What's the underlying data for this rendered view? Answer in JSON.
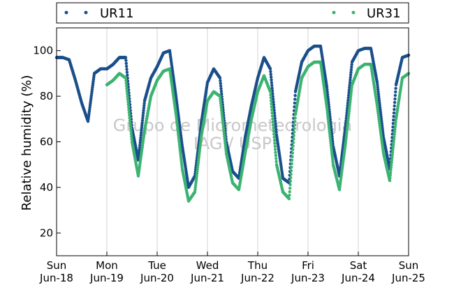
{
  "chart_data": {
    "type": "scatter",
    "ylabel": "Relative humidity (%)",
    "xlabel": "",
    "ylim": [
      10,
      110
    ],
    "xlim": [
      "2017-06-18",
      "2017-06-25"
    ],
    "yticks": [
      20,
      40,
      60,
      80,
      100
    ],
    "xticks": [
      {
        "day": "Sun",
        "date": "Jun-18"
      },
      {
        "day": "Mon",
        "date": "Jun-19"
      },
      {
        "day": "Tue",
        "date": "Jun-20"
      },
      {
        "day": "Wed",
        "date": "Jun-21"
      },
      {
        "day": "Thu",
        "date": "Jun-22"
      },
      {
        "day": "Fri",
        "date": "Jun-23"
      },
      {
        "day": "Sat",
        "date": "Jun-24"
      },
      {
        "day": "Sun",
        "date": "Jun-25"
      }
    ],
    "grid": "vertical",
    "legend_position": "top",
    "watermark": [
      "Grupo de Micrometeorologia",
      "IAG / USP"
    ],
    "series": [
      {
        "name": "UR11",
        "color": "#1a4f8b",
        "x": [
          "2017-06-18 00:00",
          "2017-06-18 03:00",
          "2017-06-18 06:00",
          "2017-06-18 09:00",
          "2017-06-18 12:00",
          "2017-06-18 15:00",
          "2017-06-18 18:00",
          "2017-06-18 21:00",
          "2017-06-19 00:00",
          "2017-06-19 03:00",
          "2017-06-19 06:00",
          "2017-06-19 09:00",
          "2017-06-19 12:00",
          "2017-06-19 15:00",
          "2017-06-19 18:00",
          "2017-06-19 21:00",
          "2017-06-20 00:00",
          "2017-06-20 03:00",
          "2017-06-20 06:00",
          "2017-06-20 09:00",
          "2017-06-20 12:00",
          "2017-06-20 15:00",
          "2017-06-20 18:00",
          "2017-06-20 21:00",
          "2017-06-21 00:00",
          "2017-06-21 03:00",
          "2017-06-21 06:00",
          "2017-06-21 09:00",
          "2017-06-21 12:00",
          "2017-06-21 15:00",
          "2017-06-21 18:00",
          "2017-06-21 21:00",
          "2017-06-22 00:00",
          "2017-06-22 03:00",
          "2017-06-22 06:00",
          "2017-06-22 09:00",
          "2017-06-22 12:00",
          "2017-06-22 15:00",
          "2017-06-22 18:00",
          "2017-06-22 21:00",
          "2017-06-23 00:00",
          "2017-06-23 03:00",
          "2017-06-23 06:00",
          "2017-06-23 09:00",
          "2017-06-23 12:00",
          "2017-06-23 15:00",
          "2017-06-23 18:00",
          "2017-06-23 21:00",
          "2017-06-24 00:00",
          "2017-06-24 03:00",
          "2017-06-24 06:00",
          "2017-06-24 09:00",
          "2017-06-24 12:00",
          "2017-06-24 15:00",
          "2017-06-24 18:00",
          "2017-06-24 21:00",
          "2017-06-25 00:00"
        ],
        "y": [
          97,
          97,
          96,
          87,
          77,
          69,
          90,
          92,
          92,
          94,
          97,
          97,
          66,
          52,
          78,
          88,
          93,
          99,
          100,
          80,
          58,
          40,
          45,
          68,
          86,
          92,
          88,
          60,
          47,
          44,
          62,
          76,
          88,
          97,
          92,
          63,
          44,
          42,
          82,
          95,
          100,
          102,
          102,
          84,
          58,
          45,
          68,
          95,
          100,
          101,
          101,
          86,
          62,
          48,
          85,
          97,
          98
        ]
      },
      {
        "name": "UR31",
        "color": "#3cb371",
        "x": [
          "2017-06-19 00:00",
          "2017-06-19 03:00",
          "2017-06-19 06:00",
          "2017-06-19 09:00",
          "2017-06-19 12:00",
          "2017-06-19 15:00",
          "2017-06-19 18:00",
          "2017-06-19 21:00",
          "2017-06-20 00:00",
          "2017-06-20 03:00",
          "2017-06-20 06:00",
          "2017-06-20 09:00",
          "2017-06-20 12:00",
          "2017-06-20 15:00",
          "2017-06-20 18:00",
          "2017-06-20 21:00",
          "2017-06-21 00:00",
          "2017-06-21 03:00",
          "2017-06-21 06:00",
          "2017-06-21 09:00",
          "2017-06-21 12:00",
          "2017-06-21 15:00",
          "2017-06-21 18:00",
          "2017-06-21 21:00",
          "2017-06-22 00:00",
          "2017-06-22 03:00",
          "2017-06-22 06:00",
          "2017-06-22 09:00",
          "2017-06-22 12:00",
          "2017-06-22 15:00",
          "2017-06-22 18:00",
          "2017-06-22 21:00",
          "2017-06-23 00:00",
          "2017-06-23 03:00",
          "2017-06-23 06:00",
          "2017-06-23 09:00",
          "2017-06-23 12:00",
          "2017-06-23 15:00",
          "2017-06-23 18:00",
          "2017-06-23 21:00",
          "2017-06-24 00:00",
          "2017-06-24 03:00",
          "2017-06-24 06:00",
          "2017-06-24 09:00",
          "2017-06-24 12:00",
          "2017-06-24 15:00",
          "2017-06-24 18:00",
          "2017-06-24 21:00",
          "2017-06-25 00:00"
        ],
        "y": [
          85,
          87,
          90,
          88,
          60,
          45,
          65,
          80,
          87,
          91,
          92,
          72,
          48,
          34,
          38,
          62,
          78,
          82,
          80,
          55,
          42,
          39,
          55,
          70,
          82,
          89,
          82,
          50,
          38,
          35,
          72,
          88,
          93,
          95,
          95,
          75,
          50,
          39,
          60,
          85,
          92,
          94,
          94,
          76,
          55,
          43,
          70,
          88,
          90
        ]
      }
    ]
  }
}
